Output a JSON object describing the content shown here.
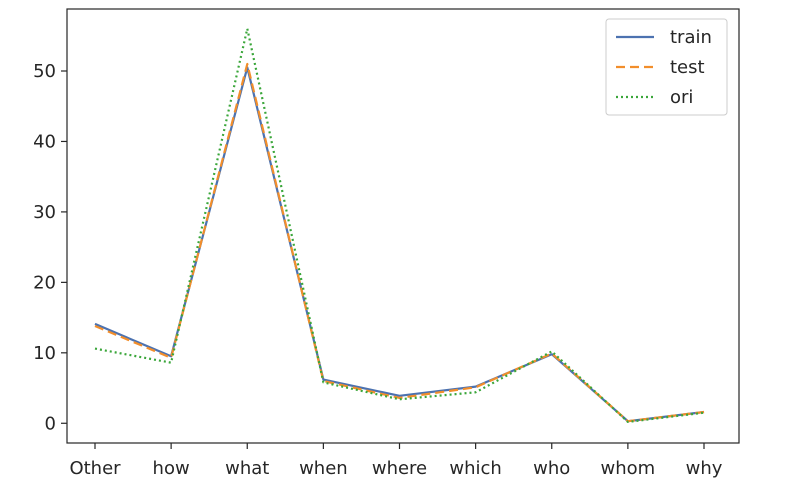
{
  "chart_data": {
    "type": "line",
    "title": "",
    "xlabel": "",
    "ylabel": "",
    "categories": [
      "Other",
      "how",
      "what",
      "when",
      "where",
      "which",
      "who",
      "whom",
      "why"
    ],
    "ylim": [
      -2.8,
      58.8
    ],
    "yticks": [
      0,
      10,
      20,
      30,
      40,
      50
    ],
    "grid": false,
    "legend": "upper-right",
    "series": [
      {
        "name": "train",
        "style": "solid",
        "color": "#4c72b0",
        "values": [
          14.1,
          9.5,
          50.5,
          6.2,
          3.9,
          5.2,
          9.8,
          0.3,
          1.6
        ]
      },
      {
        "name": "test",
        "style": "dashed",
        "color": "#f28e2b",
        "values": [
          13.8,
          9.3,
          51.0,
          6.0,
          3.6,
          5.1,
          9.9,
          0.3,
          1.6
        ]
      },
      {
        "name": "ori",
        "style": "dotted",
        "color": "#3aa63a",
        "values": [
          10.6,
          8.6,
          56.0,
          5.8,
          3.4,
          4.4,
          10.2,
          0.2,
          1.5
        ]
      }
    ]
  }
}
